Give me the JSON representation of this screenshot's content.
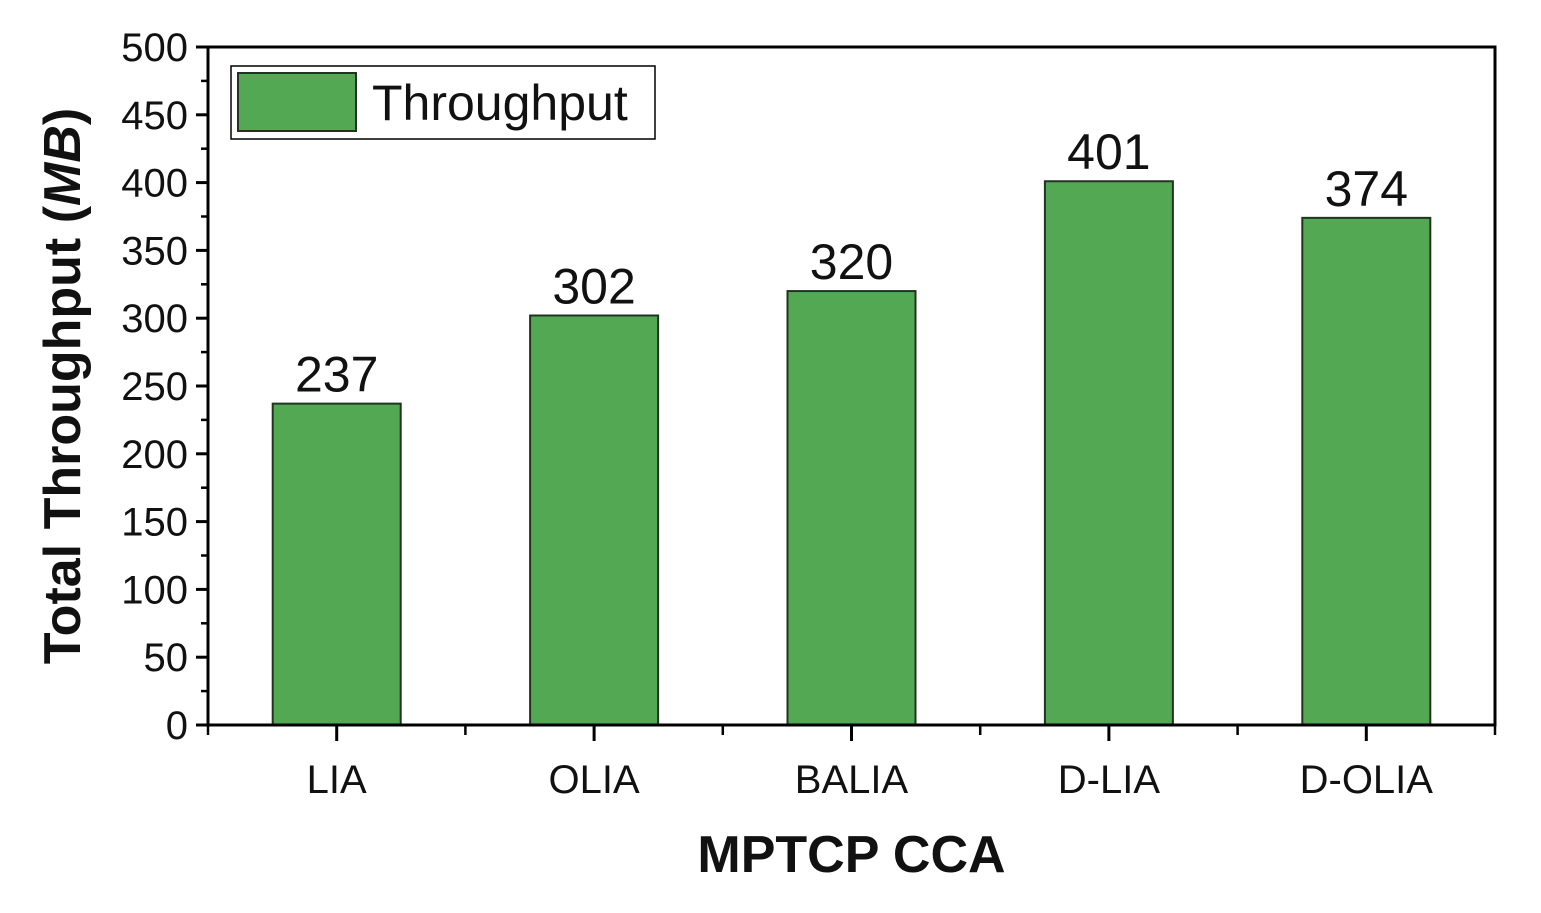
{
  "chart_data": {
    "type": "bar",
    "categories": [
      "LIA",
      "OLIA",
      "BALIA",
      "D-LIA",
      "D-OLIA"
    ],
    "series": [
      {
        "name": "Throughput",
        "values": [
          237,
          302,
          320,
          401,
          374
        ]
      }
    ],
    "data_labels": [
      "237",
      "302",
      "320",
      "401",
      "374"
    ],
    "xlabel": "MPTCP CCA",
    "ylabel_main": "Total Throughput (",
    "ylabel_unit": "MB",
    "ylabel_close": ")",
    "ylim": [
      0,
      500
    ],
    "y_ticks": [
      0,
      50,
      100,
      150,
      200,
      250,
      300,
      350,
      400,
      450,
      500
    ],
    "y_tick_labels": [
      "0",
      "50",
      "100",
      "150",
      "200",
      "250",
      "300",
      "350",
      "400",
      "450",
      "500"
    ],
    "grid": false,
    "legend_position": "top-left",
    "colors": {
      "bar_fill": "#52a853",
      "bar_stroke": "#223322",
      "axis": "#000000"
    }
  }
}
